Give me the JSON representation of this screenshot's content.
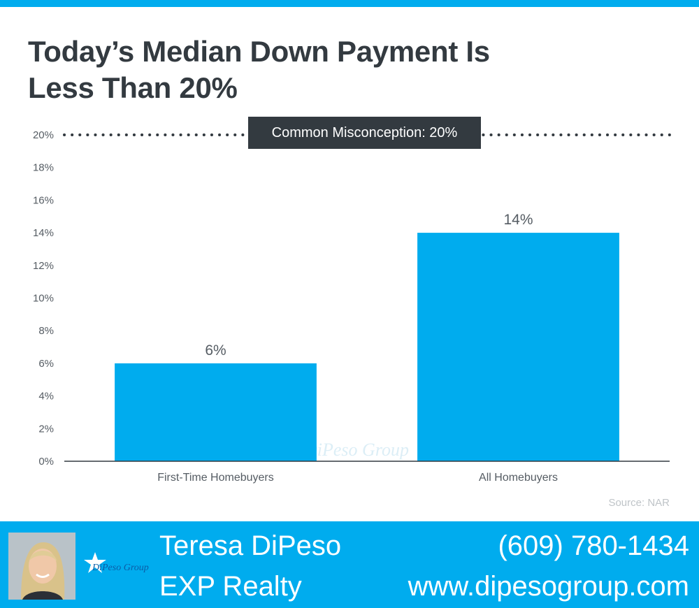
{
  "header": {
    "title_line1": "Today’s Median Down Payment Is",
    "title_line2": "Less Than 20%"
  },
  "colors": {
    "accent": "#00acee",
    "title": "#333a40",
    "axis_text": "#555c63",
    "source_text": "#bfc4c8"
  },
  "chart_data": {
    "type": "bar",
    "title": "Today’s Median Down Payment Is Less Than 20%",
    "categories": [
      "First-Time Homebuyers",
      "All Homebuyers"
    ],
    "values": [
      6,
      14
    ],
    "data_labels": [
      "6%",
      "14%"
    ],
    "ylim": [
      0,
      20
    ],
    "yticks": [
      "0%",
      "2%",
      "4%",
      "6%",
      "8%",
      "10%",
      "12%",
      "14%",
      "16%",
      "18%",
      "20%"
    ],
    "grid": false,
    "bar_color": "#00acee",
    "reference_line": {
      "value": 20,
      "style": "dotted",
      "label": "Common Misconception: 20%"
    }
  },
  "source": "Source: NAR",
  "watermark": "DiPeso Group",
  "footer": {
    "name": "Teresa DiPeso",
    "company": "EXP Realty",
    "phone": "(609) 780-1434",
    "website": "www.dipesogroup.com",
    "logo_text": "DiPeso Group"
  }
}
